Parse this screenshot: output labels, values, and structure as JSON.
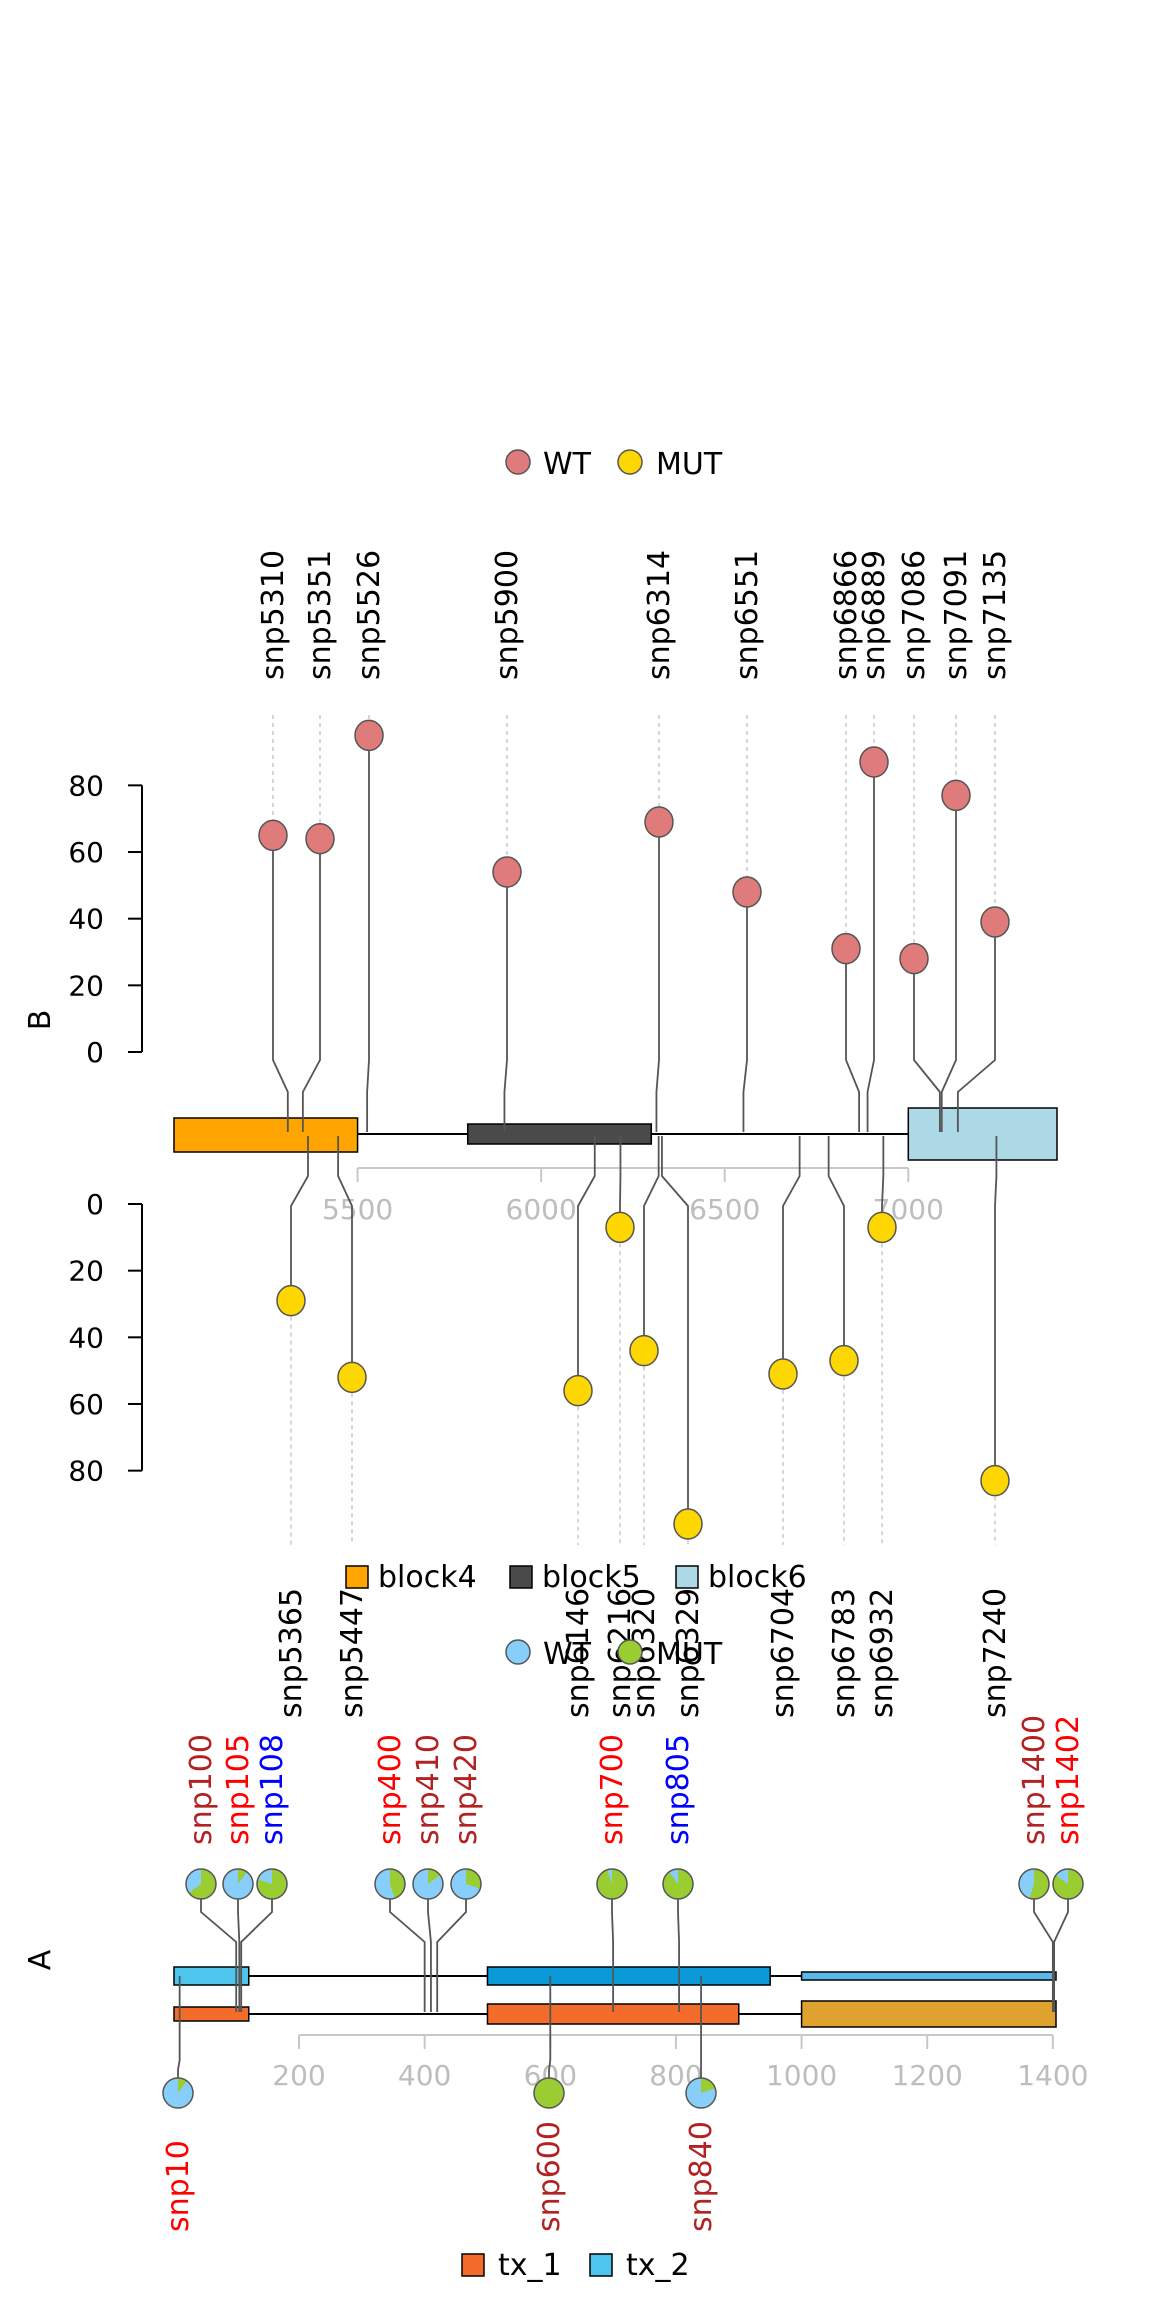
{
  "chart_data": [
    {
      "type": "lollipop",
      "panel_label": "B",
      "legend_top": [
        {
          "name": "WT",
          "color": "#E07B7B"
        },
        {
          "name": "MUT",
          "color": "#FFD700"
        }
      ],
      "x_ticks": [
        5500,
        6000,
        6500,
        7000
      ],
      "x_range": [
        5000,
        7410
      ],
      "y_ticks": [
        0,
        20,
        40,
        60,
        80
      ],
      "blocks": [
        {
          "name": "block4",
          "start": 5000,
          "end": 5500,
          "color": "#FFA500"
        },
        {
          "name": "block5",
          "start": 5800,
          "end": 6300,
          "color": "#4A4A4A"
        },
        {
          "name": "block6",
          "start": 7000,
          "end": 7405,
          "color": "#ADD8E6"
        }
      ],
      "legend_bottom": [
        {
          "name": "block4",
          "color": "#FFA500"
        },
        {
          "name": "block5",
          "color": "#4A4A4A"
        },
        {
          "name": "block6",
          "color": "#ADD8E6"
        }
      ],
      "upper": [
        {
          "label": "snp5310",
          "x": 5310,
          "value": 65
        },
        {
          "label": "snp5351",
          "x": 5351,
          "value": 64
        },
        {
          "label": "snp5526",
          "x": 5526,
          "value": 95
        },
        {
          "label": "snp5900",
          "x": 5900,
          "value": 54
        },
        {
          "label": "snp6314",
          "x": 6314,
          "value": 69
        },
        {
          "label": "snp6551",
          "x": 6551,
          "value": 48
        },
        {
          "label": "snp6866",
          "x": 6866,
          "value": 31
        },
        {
          "label": "snp6889",
          "x": 6889,
          "value": 87
        },
        {
          "label": "snp7086",
          "x": 7086,
          "value": 28
        },
        {
          "label": "snp7091",
          "x": 7091,
          "value": 77
        },
        {
          "label": "snp7135",
          "x": 7135,
          "value": 39
        }
      ],
      "lower": [
        {
          "label": "snp5365",
          "x": 5365,
          "value": 29
        },
        {
          "label": "snp5447",
          "x": 5447,
          "value": 52
        },
        {
          "label": "snp6146",
          "x": 6146,
          "value": 56
        },
        {
          "label": "snp6216",
          "x": 6216,
          "value": 7
        },
        {
          "label": "snp6320",
          "x": 6320,
          "value": 44
        },
        {
          "label": "snp6329",
          "x": 6329,
          "value": 96
        },
        {
          "label": "snp6704",
          "x": 6704,
          "value": 51
        },
        {
          "label": "snp6783",
          "x": 6783,
          "value": 47
        },
        {
          "label": "snp6932",
          "x": 6932,
          "value": 7
        },
        {
          "label": "snp7240",
          "x": 7240,
          "value": 83
        }
      ]
    },
    {
      "type": "lollipop-pie",
      "panel_label": "A",
      "legend_top": [
        {
          "name": "WT",
          "color": "#87CEFA"
        },
        {
          "name": "MUT",
          "color": "#9ACD32"
        }
      ],
      "x_ticks": [
        200,
        400,
        600,
        800,
        1000,
        1200,
        1400
      ],
      "x_range": [
        0,
        1408
      ],
      "transcripts": [
        {
          "name": "tx_2",
          "color": "#4EC5EC",
          "exons": [
            [
              1,
              120
            ],
            [
              500,
              950
            ],
            [
              1000,
              1405
            ]
          ]
        },
        {
          "name": "tx_1",
          "color": "#F36C2A",
          "exons": [
            [
              1,
              120
            ],
            [
              500,
              900
            ],
            [
              1000,
              1405
            ]
          ]
        }
      ],
      "exon_colors": {
        "tx_2": [
          "#4EC5EC",
          "#0A9AD8",
          "#5BB8E8"
        ],
        "tx_1": [
          "#F36C2A",
          "#F36C2A",
          "#E0A22E"
        ]
      },
      "legend_bottom": [
        {
          "name": "tx_1",
          "color": "#F36C2A"
        },
        {
          "name": "tx_2",
          "color": "#4EC5EC"
        }
      ],
      "upper": [
        {
          "label": "snp100",
          "x": 100,
          "label_color": "#B22222",
          "mut_fraction": 0.65
        },
        {
          "label": "snp105",
          "x": 105,
          "label_color": "#FF0000",
          "mut_fraction": 0.1
        },
        {
          "label": "snp108",
          "x": 108,
          "label_color": "#0000FF",
          "mut_fraction": 0.8
        },
        {
          "label": "snp400",
          "x": 400,
          "label_color": "#FF0000",
          "mut_fraction": 0.45
        },
        {
          "label": "snp410",
          "x": 410,
          "label_color": "#B22222",
          "mut_fraction": 0.15
        },
        {
          "label": "snp420",
          "x": 420,
          "label_color": "#B22222",
          "mut_fraction": 0.3
        },
        {
          "label": "snp700",
          "x": 700,
          "label_color": "#FF0000",
          "mut_fraction": 0.95
        },
        {
          "label": "snp805",
          "x": 805,
          "label_color": "#0000FF",
          "mut_fraction": 0.9
        },
        {
          "label": "snp1400",
          "x": 1400,
          "label_color": "#B22222",
          "mut_fraction": 0.55
        },
        {
          "label": "snp1402",
          "x": 1402,
          "label_color": "#FF0000",
          "mut_fraction": 0.85
        }
      ],
      "lower": [
        {
          "label": "snp10",
          "x": 10,
          "label_color": "#FF0000",
          "mut_fraction": 0.1
        },
        {
          "label": "snp600",
          "x": 600,
          "label_color": "#B22222",
          "mut_fraction": 1.0
        },
        {
          "label": "snp840",
          "x": 840,
          "label_color": "#B22222",
          "mut_fraction": 0.2
        }
      ]
    }
  ]
}
